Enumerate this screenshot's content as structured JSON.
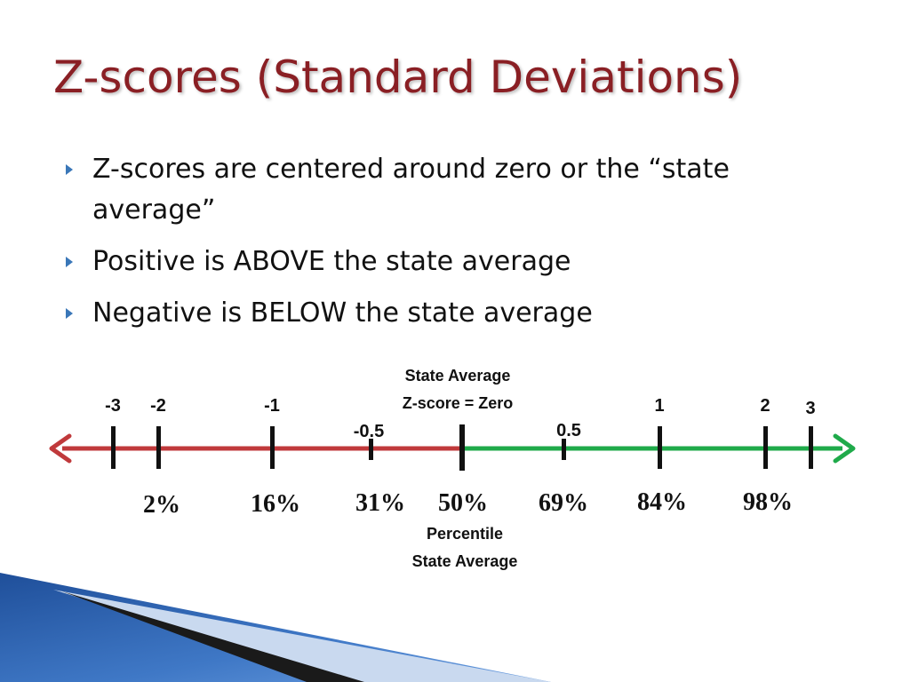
{
  "slide": {
    "title": "Z-scores (Standard Deviations)",
    "bullets": [
      "Z-scores are centered around zero or the “state average”",
      "Positive is ABOVE the state average",
      "Negative is BELOW the state average"
    ]
  },
  "diagram": {
    "top_caption": [
      "State Average",
      "Z-score = Zero"
    ],
    "bottom_caption": [
      "Percentile",
      "State Average"
    ],
    "colors": {
      "negative": "#c0393b",
      "positive": "#1faa4a",
      "title": "#8a1f24",
      "bullet": "#3a77b8"
    },
    "ticks": [
      {
        "z": -3,
        "label": "-3",
        "percentile": ""
      },
      {
        "z": -2,
        "label": "-2",
        "percentile": "2%"
      },
      {
        "z": -1,
        "label": "-1",
        "percentile": "16%"
      },
      {
        "z": -0.5,
        "label": "-0.5",
        "percentile": "31%"
      },
      {
        "z": 0,
        "label": "",
        "percentile": "50%"
      },
      {
        "z": 0.5,
        "label": "0.5",
        "percentile": "69%"
      },
      {
        "z": 1,
        "label": "1",
        "percentile": "84%"
      },
      {
        "z": 2,
        "label": "2",
        "percentile": "98%"
      },
      {
        "z": 3,
        "label": "3",
        "percentile": ""
      }
    ]
  }
}
